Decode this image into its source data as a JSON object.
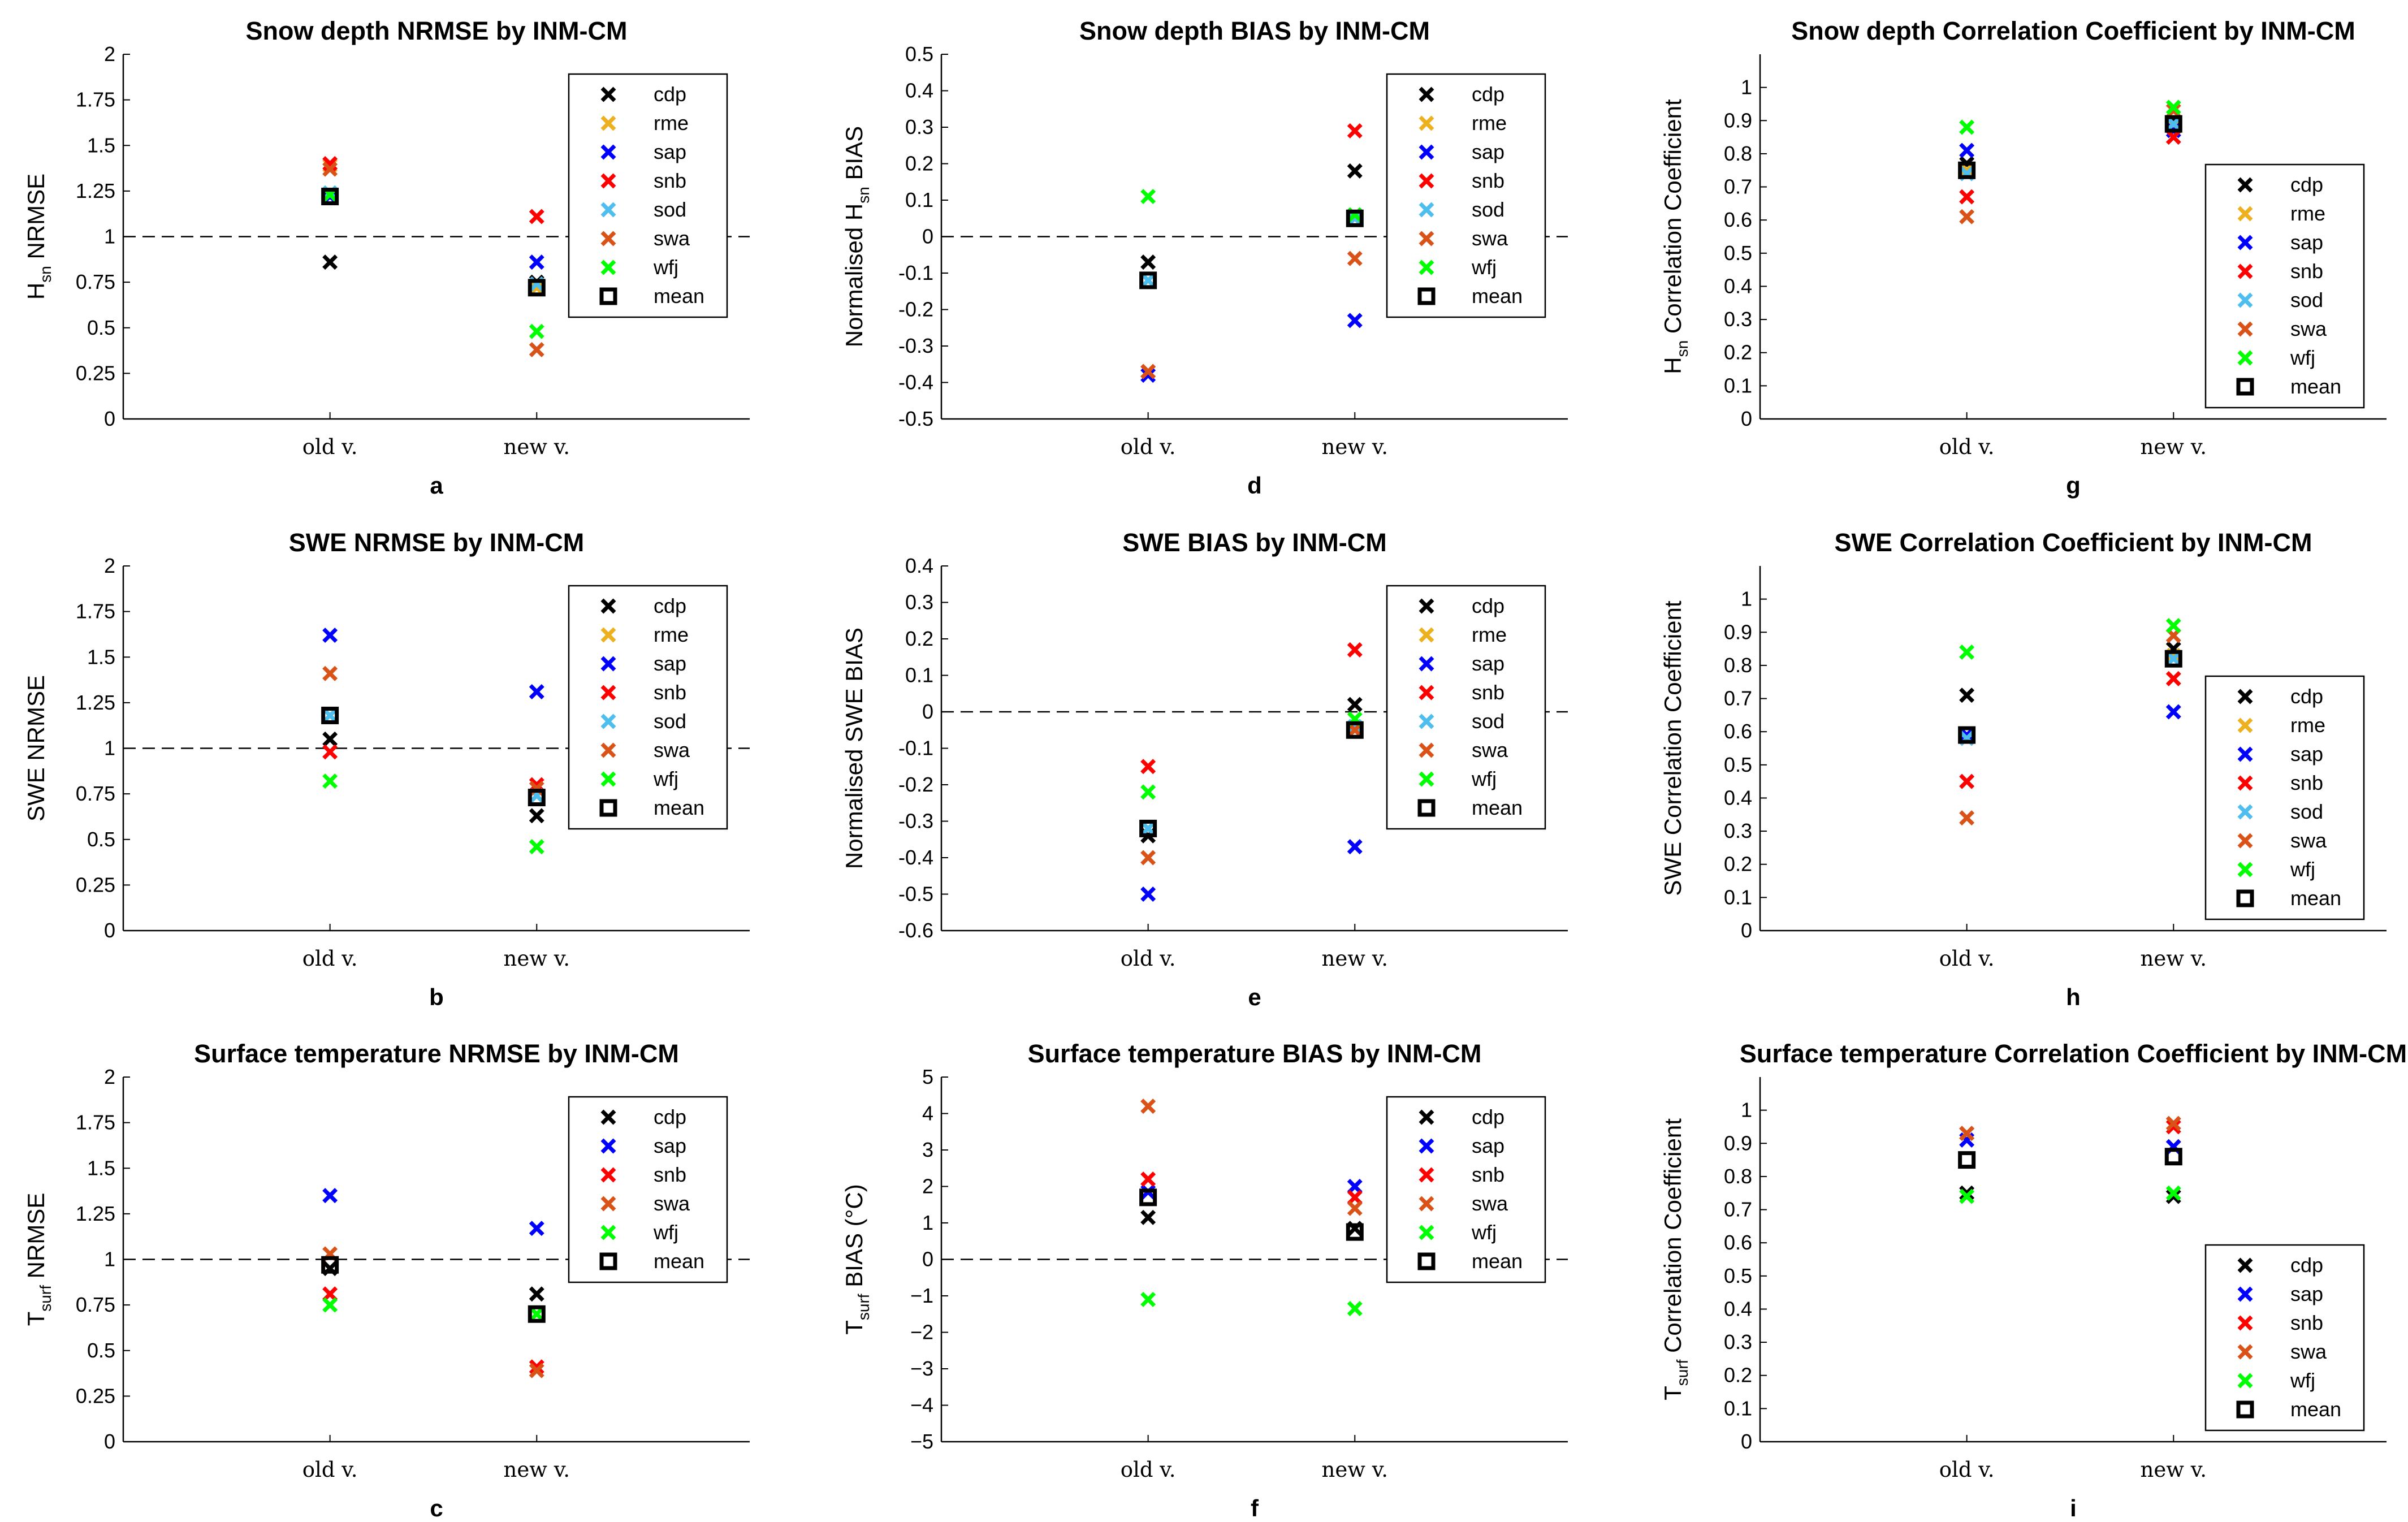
{
  "chart_data": [
    {
      "label": "a",
      "type": "scatter",
      "title": "Snow depth NRMSE by INM-CM",
      "ylabel": {
        "pre": "H",
        "sub": "sn",
        "post": " NRMSE"
      },
      "categories": [
        "old v.",
        "new v."
      ],
      "ylim": [
        0,
        2
      ],
      "yticks": [
        "0",
        "0.25",
        "0.5",
        "0.75",
        "1",
        "1.25",
        "1.5",
        "1.75",
        "2"
      ],
      "reference_line": 1,
      "legend_position": "top-right",
      "series": [
        {
          "name": "cdp",
          "color": "#000000",
          "values": [
            0.86,
            0.75
          ]
        },
        {
          "name": "rme",
          "color": "#EDB120",
          "values": [
            1.39,
            0.72
          ]
        },
        {
          "name": "sap",
          "color": "#0000FF",
          "values": [
            1.22,
            0.86
          ]
        },
        {
          "name": "snb",
          "color": "#FF0000",
          "values": [
            1.4,
            1.11
          ]
        },
        {
          "name": "sod",
          "color": "#4DBEEE",
          "values": [
            1.24,
            0.74
          ]
        },
        {
          "name": "swa",
          "color": "#D95319",
          "values": [
            1.37,
            0.38
          ]
        },
        {
          "name": "wfj",
          "color": "#00FF00",
          "values": [
            1.23,
            0.48
          ]
        },
        {
          "name": "mean",
          "color": "#000000",
          "marker": "square",
          "values": [
            1.22,
            0.72
          ]
        }
      ]
    },
    {
      "label": "b",
      "type": "scatter",
      "title": "SWE NRMSE by INM-CM",
      "ylabel": {
        "pre": "SWE NRMSE",
        "sub": "",
        "post": ""
      },
      "categories": [
        "old v.",
        "new v."
      ],
      "ylim": [
        0,
        2
      ],
      "yticks": [
        "0",
        "0.25",
        "0.5",
        "0.75",
        "1",
        "1.25",
        "1.5",
        "1.75",
        "2"
      ],
      "reference_line": 1,
      "legend_position": "top-right",
      "series": [
        {
          "name": "cdp",
          "color": "#000000",
          "values": [
            1.05,
            0.63
          ]
        },
        {
          "name": "rme",
          "color": "#EDB120",
          "values": [
            1.18,
            0.74
          ]
        },
        {
          "name": "sap",
          "color": "#0000FF",
          "values": [
            1.62,
            1.31
          ]
        },
        {
          "name": "snb",
          "color": "#FF0000",
          "values": [
            0.98,
            0.8
          ]
        },
        {
          "name": "sod",
          "color": "#4DBEEE",
          "values": [
            1.18,
            0.74
          ]
        },
        {
          "name": "swa",
          "color": "#D95319",
          "values": [
            1.41,
            0.78
          ]
        },
        {
          "name": "wfj",
          "color": "#00FF00",
          "values": [
            0.82,
            0.46
          ]
        },
        {
          "name": "mean",
          "color": "#000000",
          "marker": "square",
          "values": [
            1.18,
            0.73
          ]
        }
      ]
    },
    {
      "label": "c",
      "type": "scatter",
      "title": "Surface temperature NRMSE by INM-CM",
      "ylabel": {
        "pre": "T",
        "sub": "surf",
        "post": " NRMSE"
      },
      "categories": [
        "old v.",
        "new v."
      ],
      "ylim": [
        0,
        2
      ],
      "yticks": [
        "0",
        "0.25",
        "0.5",
        "0.75",
        "1",
        "1.25",
        "1.5",
        "1.75",
        "2"
      ],
      "reference_line": 1,
      "legend_position": "top-right",
      "series": [
        {
          "name": "cdp",
          "color": "#000000",
          "values": [
            0.95,
            0.81
          ]
        },
        {
          "name": "sap",
          "color": "#0000FF",
          "values": [
            1.35,
            1.17
          ]
        },
        {
          "name": "snb",
          "color": "#FF0000",
          "values": [
            0.81,
            0.41
          ]
        },
        {
          "name": "swa",
          "color": "#D95319",
          "values": [
            1.03,
            0.39
          ]
        },
        {
          "name": "wfj",
          "color": "#00FF00",
          "values": [
            0.75,
            0.7
          ]
        },
        {
          "name": "mean",
          "color": "#000000",
          "marker": "square",
          "values": [
            0.97,
            0.7
          ]
        }
      ]
    },
    {
      "label": "d",
      "type": "scatter",
      "title": "Snow depth BIAS by INM-CM",
      "ylabel": {
        "pre": "Normalised H",
        "sub": "sn",
        "post": " BIAS"
      },
      "categories": [
        "old v.",
        "new v."
      ],
      "ylim": [
        -0.5,
        0.5
      ],
      "yticks": [
        "-0.5",
        "-0.4",
        "-0.3",
        "-0.2",
        "-0.1",
        "0",
        "0.1",
        "0.2",
        "0.3",
        "0.4",
        "0.5"
      ],
      "reference_line": 0,
      "legend_position": "top-right",
      "series": [
        {
          "name": "cdp",
          "color": "#000000",
          "values": [
            -0.07,
            0.18
          ]
        },
        {
          "name": "rme",
          "color": "#EDB120",
          "values": [
            -0.37,
            0.05
          ]
        },
        {
          "name": "sap",
          "color": "#0000FF",
          "values": [
            -0.38,
            -0.23
          ]
        },
        {
          "name": "snb",
          "color": "#FF0000",
          "values": [
            -0.37,
            0.29
          ]
        },
        {
          "name": "sod",
          "color": "#4DBEEE",
          "values": [
            -0.12,
            0.05
          ]
        },
        {
          "name": "swa",
          "color": "#D95319",
          "values": [
            -0.37,
            -0.06
          ]
        },
        {
          "name": "wfj",
          "color": "#00FF00",
          "values": [
            0.11,
            0.06
          ]
        },
        {
          "name": "mean",
          "color": "#000000",
          "marker": "square",
          "values": [
            -0.12,
            0.05
          ]
        }
      ]
    },
    {
      "label": "e",
      "type": "scatter",
      "title": "SWE BIAS by INM-CM",
      "ylabel": {
        "pre": "Normalised SWE BIAS",
        "sub": "",
        "post": ""
      },
      "categories": [
        "old v.",
        "new v."
      ],
      "ylim": [
        -0.6,
        0.4
      ],
      "yticks": [
        "-0.6",
        "-0.5",
        "-0.4",
        "-0.3",
        "-0.2",
        "-0.1",
        "0",
        "0.1",
        "0.2",
        "0.3",
        "0.4"
      ],
      "reference_line": 0,
      "legend_position": "top-right",
      "series": [
        {
          "name": "cdp",
          "color": "#000000",
          "values": [
            -0.34,
            0.02
          ]
        },
        {
          "name": "rme",
          "color": "#EDB120",
          "values": [
            -0.32,
            -0.04
          ]
        },
        {
          "name": "sap",
          "color": "#0000FF",
          "values": [
            -0.5,
            -0.37
          ]
        },
        {
          "name": "snb",
          "color": "#FF0000",
          "values": [
            -0.15,
            0.17
          ]
        },
        {
          "name": "sod",
          "color": "#4DBEEE",
          "values": [
            -0.32,
            -0.04
          ]
        },
        {
          "name": "swa",
          "color": "#D95319",
          "values": [
            -0.4,
            -0.05
          ]
        },
        {
          "name": "wfj",
          "color": "#00FF00",
          "values": [
            -0.22,
            -0.02
          ]
        },
        {
          "name": "mean",
          "color": "#000000",
          "marker": "square",
          "values": [
            -0.32,
            -0.05
          ]
        }
      ]
    },
    {
      "label": "f",
      "type": "scatter",
      "title": "Surface temperature BIAS by INM-CM",
      "ylabel": {
        "pre": "T",
        "sub": "surf",
        "post": " BIAS (°C)"
      },
      "categories": [
        "old v.",
        "new v."
      ],
      "ylim": [
        -5,
        5
      ],
      "yticks": [
        "−5",
        "−4",
        "−3",
        "−2",
        "−1",
        "0",
        "1",
        "2",
        "3",
        "4",
        "5"
      ],
      "reference_line": 0,
      "legend_position": "top-right",
      "series": [
        {
          "name": "cdp",
          "color": "#000000",
          "values": [
            1.15,
            0.85
          ]
        },
        {
          "name": "sap",
          "color": "#0000FF",
          "values": [
            1.85,
            2.0
          ]
        },
        {
          "name": "snb",
          "color": "#FF0000",
          "values": [
            2.2,
            1.7
          ]
        },
        {
          "name": "swa",
          "color": "#D95319",
          "values": [
            4.2,
            1.4
          ]
        },
        {
          "name": "wfj",
          "color": "#00FF00",
          "values": [
            -1.1,
            -1.35
          ]
        },
        {
          "name": "mean",
          "color": "#000000",
          "marker": "square",
          "values": [
            1.7,
            0.75
          ]
        }
      ]
    },
    {
      "label": "g",
      "type": "scatter",
      "title": "Snow depth Correlation Coefficient by INM-CM",
      "ylabel": {
        "pre": "H",
        "sub": "sn",
        "post": " Correlation Coefficient"
      },
      "categories": [
        "old v.",
        "new v."
      ],
      "ylim": [
        0,
        1.1
      ],
      "yticks": [
        "0",
        "0.1",
        "0.2",
        "0.3",
        "0.4",
        "0.5",
        "0.6",
        "0.7",
        "0.8",
        "0.9",
        "1"
      ],
      "reference_line": null,
      "legend_position": "bottom-right",
      "series": [
        {
          "name": "cdp",
          "color": "#000000",
          "values": [
            0.77,
            0.9
          ]
        },
        {
          "name": "rme",
          "color": "#EDB120",
          "values": [
            0.75,
            0.88
          ]
        },
        {
          "name": "sap",
          "color": "#0000FF",
          "values": [
            0.81,
            0.87
          ]
        },
        {
          "name": "snb",
          "color": "#FF0000",
          "values": [
            0.67,
            0.85
          ]
        },
        {
          "name": "sod",
          "color": "#4DBEEE",
          "values": [
            0.74,
            0.89
          ]
        },
        {
          "name": "swa",
          "color": "#D95319",
          "values": [
            0.61,
            0.93
          ]
        },
        {
          "name": "wfj",
          "color": "#00FF00",
          "values": [
            0.88,
            0.94
          ]
        },
        {
          "name": "mean",
          "color": "#000000",
          "marker": "square",
          "values": [
            0.75,
            0.89
          ]
        }
      ]
    },
    {
      "label": "h",
      "type": "scatter",
      "title": "SWE Correlation Coefficient by INM-CM",
      "ylabel": {
        "pre": "SWE Correlation Coefficient",
        "sub": "",
        "post": ""
      },
      "categories": [
        "old v.",
        "new v."
      ],
      "ylim": [
        0,
        1.1
      ],
      "yticks": [
        "0",
        "0.1",
        "0.2",
        "0.3",
        "0.4",
        "0.5",
        "0.6",
        "0.7",
        "0.8",
        "0.9",
        "1"
      ],
      "reference_line": null,
      "legend_position": "bottom-right",
      "series": [
        {
          "name": "cdp",
          "color": "#000000",
          "values": [
            0.71,
            0.85
          ]
        },
        {
          "name": "rme",
          "color": "#EDB120",
          "values": [
            0.58,
            0.83
          ]
        },
        {
          "name": "sap",
          "color": "#0000FF",
          "values": [
            0.59,
            0.66
          ]
        },
        {
          "name": "snb",
          "color": "#FF0000",
          "values": [
            0.45,
            0.76
          ]
        },
        {
          "name": "sod",
          "color": "#4DBEEE",
          "values": [
            0.58,
            0.82
          ]
        },
        {
          "name": "swa",
          "color": "#D95319",
          "values": [
            0.34,
            0.89
          ]
        },
        {
          "name": "wfj",
          "color": "#00FF00",
          "values": [
            0.84,
            0.92
          ]
        },
        {
          "name": "mean",
          "color": "#000000",
          "marker": "square",
          "values": [
            0.59,
            0.82
          ]
        }
      ]
    },
    {
      "label": "i",
      "type": "scatter",
      "title": "Surface temperature Correlation Coefficient by INM-CM",
      "ylabel": {
        "pre": "T",
        "sub": "surf",
        "post": " Correlation Coefficient"
      },
      "categories": [
        "old v.",
        "new v."
      ],
      "ylim": [
        0,
        1.1
      ],
      "yticks": [
        "0",
        "0.1",
        "0.2",
        "0.3",
        "0.4",
        "0.5",
        "0.6",
        "0.7",
        "0.8",
        "0.9",
        "1"
      ],
      "reference_line": null,
      "legend_position": "bottom-right",
      "series": [
        {
          "name": "cdp",
          "color": "#000000",
          "values": [
            0.75,
            0.74
          ]
        },
        {
          "name": "sap",
          "color": "#0000FF",
          "values": [
            0.91,
            0.89
          ]
        },
        {
          "name": "snb",
          "color": "#FF0000",
          "values": [
            0.93,
            0.95
          ]
        },
        {
          "name": "swa",
          "color": "#D95319",
          "values": [
            0.93,
            0.96
          ]
        },
        {
          "name": "wfj",
          "color": "#00FF00",
          "values": [
            0.74,
            0.75
          ]
        },
        {
          "name": "mean",
          "color": "#000000",
          "marker": "square",
          "values": [
            0.85,
            0.86
          ]
        }
      ]
    }
  ]
}
